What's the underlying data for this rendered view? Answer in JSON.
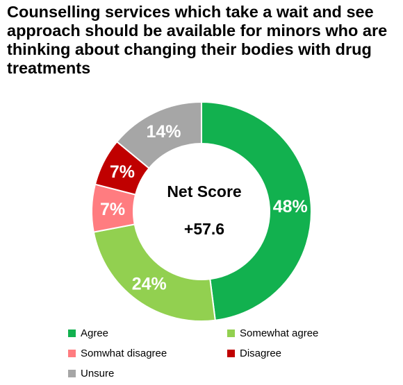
{
  "chart_data": {
    "type": "pie",
    "title": "Counselling services which take a wait and see approach should be available for minors who are thinking about changing their bodies with drug treatments",
    "slices": [
      {
        "label": "Agree",
        "value": 48,
        "display": "48%",
        "color": "#12b14f"
      },
      {
        "label": "Somewhat agree",
        "value": 24,
        "display": "24%",
        "color": "#92d050"
      },
      {
        "label": "Somwhat disagree",
        "value": 7,
        "display": "7%",
        "color": "#ff7c80"
      },
      {
        "label": "Disagree",
        "value": 7,
        "display": "7%",
        "color": "#c00000"
      },
      {
        "label": "Unsure",
        "value": 14,
        "display": "14%",
        "color": "#a6a6a6"
      }
    ],
    "center": {
      "label": "Net Score",
      "value": "+57.6"
    },
    "legend_position": "bottom"
  }
}
